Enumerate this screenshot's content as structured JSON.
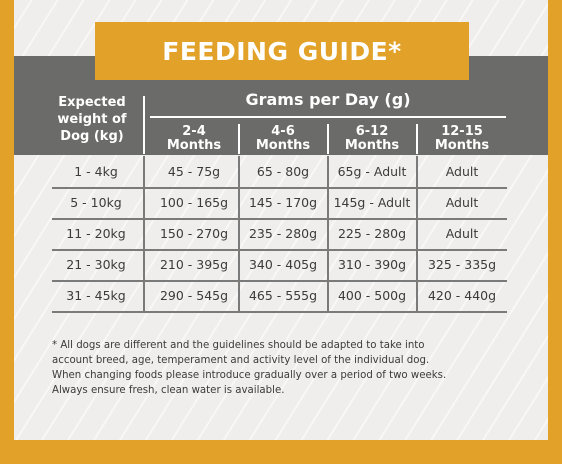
{
  "title": "FEEDING GUIDE*",
  "header": {
    "weight_label_line1": "Expected",
    "weight_label_line2": "weight of",
    "weight_label_line3": "Dog (kg)",
    "grams_label": "Grams per Day (g)",
    "columns": [
      {
        "line1": "2-4",
        "line2": "Months"
      },
      {
        "line1": "4-6",
        "line2": "Months"
      },
      {
        "line1": "6-12",
        "line2": "Months"
      },
      {
        "line1": "12-15",
        "line2": "Months"
      }
    ]
  },
  "rows": [
    {
      "weight": "1 - 4kg",
      "c1": "45 - 75g",
      "c2": "65 - 80g",
      "c3": "65g - Adult",
      "c4": "Adult"
    },
    {
      "weight": "5 - 10kg",
      "c1": "100 - 165g",
      "c2": "145 - 170g",
      "c3": "145g - Adult",
      "c4": "Adult"
    },
    {
      "weight": "11 - 20kg",
      "c1": "150 - 270g",
      "c2": "235 - 280g",
      "c3": "225 - 280g",
      "c4": "Adult"
    },
    {
      "weight": "21 - 30kg",
      "c1": "210 - 395g",
      "c2": "340 - 405g",
      "c3": "310 - 390g",
      "c4": "325 - 335g"
    },
    {
      "weight": "31 - 45kg",
      "c1": "290 - 545g",
      "c2": "465 - 555g",
      "c3": "400 - 500g",
      "c4": "420 - 440g"
    }
  ],
  "footnote": {
    "line1": "* All dogs are different and the guidelines should be adapted to take into",
    "line2": "account breed, age, temperament and activity level of the individual dog.",
    "line3": "When changing foods please introduce gradually over a period of two weeks.",
    "line4": "Always ensure fresh, clean water is available."
  }
}
